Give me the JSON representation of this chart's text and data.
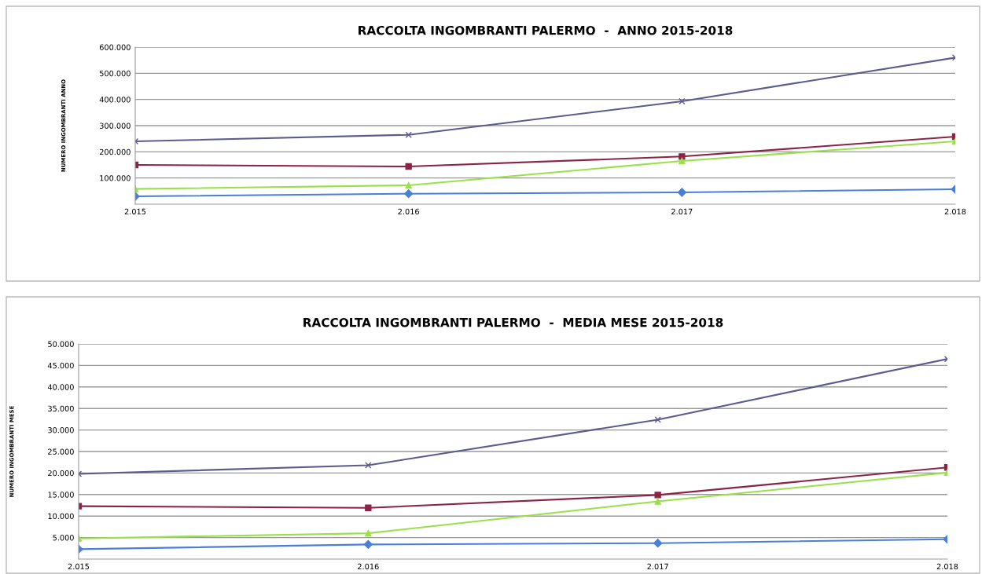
{
  "chart_data": [
    {
      "type": "line",
      "title": "RACCOLTA INGOMBRANTI PALERMO  -  ANNO 2015-2018",
      "ylabel": "NUMERO INGOMBRANTI ANNO",
      "categories": [
        "2.015",
        "2.016",
        "2.017",
        "2.018"
      ],
      "ylim": [
        0,
        600000
      ],
      "yticks": [
        {
          "value": 100000,
          "label": "100.000"
        },
        {
          "value": 200000,
          "label": "200.000"
        },
        {
          "value": 300000,
          "label": "300.000"
        },
        {
          "value": 400000,
          "label": "400.000"
        },
        {
          "value": 500000,
          "label": "500.000"
        },
        {
          "value": 600000,
          "label": "600.000"
        }
      ],
      "grid": "y",
      "series": [
        {
          "color": "#4a7fd6",
          "marker": "diamond",
          "values": [
            30000,
            40000,
            45000,
            57000
          ]
        },
        {
          "color": "#8b2346",
          "marker": "square",
          "values": [
            150000,
            144000,
            182000,
            258000
          ]
        },
        {
          "color": "#99e04a",
          "marker": "triangle",
          "values": [
            58000,
            72000,
            165000,
            240000
          ]
        },
        {
          "color": "#5b5b8f",
          "marker": "cross",
          "values": [
            240000,
            265000,
            393000,
            560000
          ]
        }
      ]
    },
    {
      "type": "line",
      "title": "RACCOLTA INGOMBRANTI PALERMO  -  MEDIA MESE 2015-2018",
      "ylabel": "NUMERO INGOMBRANTI MESE",
      "categories": [
        "2.015",
        "2.016",
        "2.017",
        "2.018"
      ],
      "ylim": [
        0,
        50000
      ],
      "yticks": [
        {
          "value": 5000,
          "label": "5.000"
        },
        {
          "value": 10000,
          "label": "10.000"
        },
        {
          "value": 15000,
          "label": "15.000"
        },
        {
          "value": 20000,
          "label": "20.000"
        },
        {
          "value": 25000,
          "label": "25.000"
        },
        {
          "value": 30000,
          "label": "30.000"
        },
        {
          "value": 35000,
          "label": "35.000"
        },
        {
          "value": 40000,
          "label": "40.000"
        },
        {
          "value": 45000,
          "label": "45.000"
        },
        {
          "value": 50000,
          "label": "50.000"
        }
      ],
      "grid": "y",
      "series": [
        {
          "color": "#4a7fd6",
          "marker": "diamond",
          "values": [
            2300,
            3400,
            3700,
            4600
          ]
        },
        {
          "color": "#8b2346",
          "marker": "square",
          "values": [
            12300,
            11900,
            14900,
            21300
          ]
        },
        {
          "color": "#99e04a",
          "marker": "triangle",
          "values": [
            4800,
            6000,
            13400,
            20100
          ]
        },
        {
          "color": "#5b5b8f",
          "marker": "cross",
          "values": [
            19800,
            21800,
            32400,
            46500
          ]
        }
      ]
    }
  ]
}
